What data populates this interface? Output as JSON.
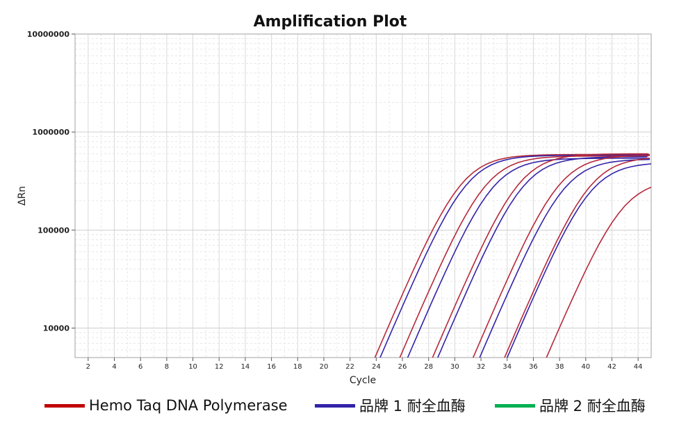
{
  "chart_data": {
    "type": "line",
    "title": "Amplification Plot",
    "xlabel": "Cycle",
    "ylabel": "ΔRn",
    "x_ticks": [
      2,
      4,
      6,
      8,
      10,
      12,
      14,
      16,
      18,
      20,
      22,
      24,
      26,
      28,
      30,
      32,
      34,
      36,
      38,
      40,
      42,
      44
    ],
    "y_ticks": [
      10000,
      100000,
      1000000,
      10000000
    ],
    "y_tick_labels": [
      "10000",
      "100000",
      "1000000",
      "10000000"
    ],
    "xlim": [
      1,
      45
    ],
    "ylim": [
      5000,
      10000000
    ],
    "y_scale": "log",
    "grid": true,
    "legend_position": "bottom",
    "legend": [
      {
        "label": "Hemo Taq DNA Polymerase",
        "color": "#c00000"
      },
      {
        "label": "品牌 1 耐全血酶",
        "color": "#3223a8"
      },
      {
        "label": "品牌 2 耐全血酶",
        "color": "#00b050"
      }
    ],
    "series": [
      {
        "color": "#b5283a",
        "ct": 23.9,
        "plateau": 590000
      },
      {
        "color": "#3223a8",
        "ct": 24.3,
        "plateau": 580000
      },
      {
        "color": "#b5283a",
        "ct": 25.8,
        "plateau": 570000
      },
      {
        "color": "#3223a8",
        "ct": 26.4,
        "plateau": 540000
      },
      {
        "color": "#b5283a",
        "ct": 28.3,
        "plateau": 600000
      },
      {
        "color": "#3223a8",
        "ct": 28.7,
        "plateau": 560000
      },
      {
        "color": "#b5283a",
        "ct": 31.4,
        "plateau": 580000
      },
      {
        "color": "#3223a8",
        "ct": 31.9,
        "plateau": 530000
      },
      {
        "color": "#b5283a",
        "ct": 33.8,
        "plateau": 560000
      },
      {
        "color": "#3223a8",
        "ct": 34.0,
        "plateau": 490000
      },
      {
        "color": "#b5283a",
        "ct": 37.0,
        "plateau": 330000
      }
    ]
  }
}
